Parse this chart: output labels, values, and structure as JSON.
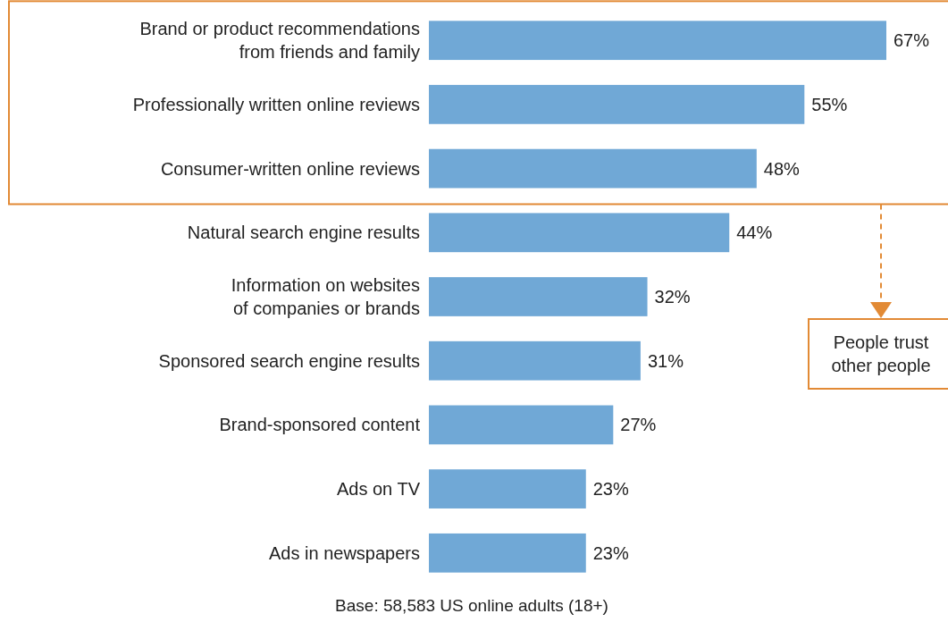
{
  "chart_data": {
    "type": "bar",
    "orientation": "horizontal",
    "categories": [
      "Brand or product recommendations from friends and family",
      "Professionally written online reviews",
      "Consumer-written online reviews",
      "Natural search engine results",
      "Information on websites of companies or brands",
      "Sponsored search engine results",
      "Brand-sponsored content",
      "Ads on TV",
      "Ads in newspapers"
    ],
    "values": [
      67,
      55,
      48,
      44,
      32,
      31,
      27,
      23,
      23
    ],
    "value_labels": [
      "67%",
      "55%",
      "48%",
      "44%",
      "32%",
      "31%",
      "27%",
      "23%",
      "23%"
    ],
    "color": "#70a8d6",
    "annotations": [
      "People trust other people",
      "Base: 58,583 US online adults (18+)"
    ]
  }
}
